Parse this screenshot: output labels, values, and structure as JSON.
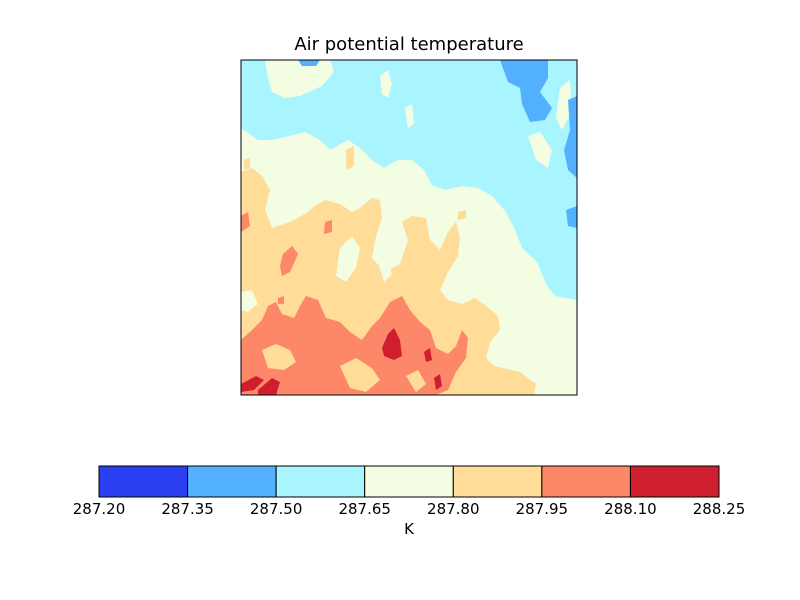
{
  "chart_data": {
    "type": "heatmap",
    "title": "Air potential temperature",
    "colorbar": {
      "label": "K",
      "ticks": [
        "287.20",
        "287.35",
        "287.50",
        "287.65",
        "287.80",
        "287.95",
        "288.10",
        "288.25"
      ],
      "levels": [
        287.2,
        287.35,
        287.5,
        287.65,
        287.8,
        287.95,
        288.1,
        288.25
      ],
      "colors": [
        "#2b3ff2",
        "#52b0ff",
        "#a9f5ff",
        "#f2fde2",
        "#ffdc98",
        "#fd8769",
        "#cf1f2f"
      ]
    },
    "field_description": "filled contours, warmer toward lower-left, cooler toward upper-right",
    "axes_ticks": "none"
  }
}
